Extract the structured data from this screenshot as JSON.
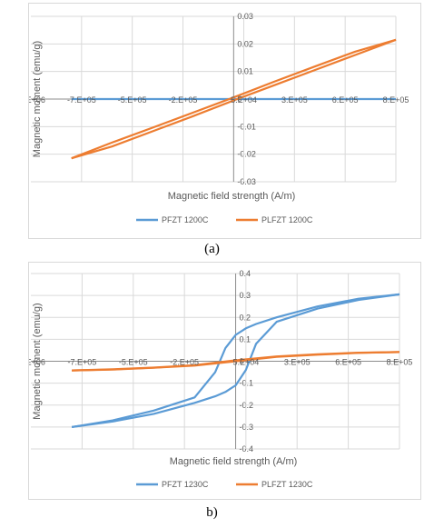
{
  "chart_data": [
    {
      "id": "a",
      "type": "line",
      "caption": "(a)",
      "xlabel": "Magnetic field strength (A/m)",
      "ylabel": "Magnetic moment (emu/g)",
      "xlim": [
        -1000000,
        800000
      ],
      "ylim": [
        -0.03,
        0.03
      ],
      "x_ticks": [
        -1000000,
        -750000,
        -500000,
        -250000,
        50000,
        300000,
        550000,
        800000
      ],
      "x_tick_labels": [
        "-1.E+06",
        "-7.E+05",
        "-5.E+05",
        "-2.E+05",
        "5.E+04",
        "3.E+05",
        "6.E+05",
        "8.E+05"
      ],
      "y_ticks": [
        -0.03,
        -0.02,
        -0.01,
        0,
        0.01,
        0.02,
        0.03
      ],
      "y_tick_labels": [
        "-0.03",
        "-0.02",
        "-0.01",
        "0",
        "0.01",
        "0.02",
        "0.03"
      ],
      "grid": true,
      "legend_position": "bottom",
      "series": [
        {
          "name": "PFZT 1200C",
          "color": "#5b9bd5",
          "x": [
            -800000,
            800000
          ],
          "y": [
            0,
            0
          ]
        },
        {
          "name": "PLFZT 1200C",
          "color": "#ed7d31",
          "x": [
            -800000,
            -600000,
            -400000,
            -200000,
            0,
            200000,
            400000,
            600000,
            800000
          ],
          "y": [
            -0.0215,
            -0.0172,
            -0.0117,
            -0.0062,
            -0.0005,
            0.005,
            0.0105,
            0.016,
            0.0215
          ]
        },
        {
          "name": "",
          "color": "#ed7d31",
          "x": [
            800000,
            600000,
            400000,
            200000,
            0,
            -200000,
            -400000,
            -600000,
            -800000
          ],
          "y": [
            0.0215,
            0.0172,
            0.0118,
            0.0063,
            0.0006,
            -0.0049,
            -0.0104,
            -0.0158,
            -0.0215
          ]
        }
      ]
    },
    {
      "id": "b",
      "type": "line",
      "caption": "b)",
      "xlabel": "Magnetic field strength (A/m)",
      "ylabel": "Magnetic moment (emu/g)",
      "xlim": [
        -1000000,
        800000
      ],
      "ylim": [
        -0.4,
        0.4
      ],
      "x_ticks": [
        -1000000,
        -750000,
        -500000,
        -250000,
        50000,
        300000,
        550000,
        800000
      ],
      "x_tick_labels": [
        "-1.E+06",
        "-7.E+05",
        "-5.E+05",
        "-2.E+05",
        "5.E+04",
        "3.E+05",
        "6.E+05",
        "8.E+05"
      ],
      "y_ticks": [
        -0.4,
        -0.3,
        -0.2,
        -0.1,
        0,
        0.1,
        0.2,
        0.3,
        0.4
      ],
      "y_tick_labels": [
        "-0.4",
        "-0.3",
        "-0.2",
        "-0.1",
        "0",
        "0.1",
        "0.2",
        "0.3",
        "0.4"
      ],
      "grid": true,
      "legend_position": "bottom",
      "series": [
        {
          "name": "PFZT 1230C",
          "color": "#5b9bd5",
          "x": [
            -800000,
            -600000,
            -400000,
            -200000,
            -100000,
            -50000,
            0,
            50000,
            100000,
            200000,
            400000,
            600000,
            800000
          ],
          "y": [
            -0.3,
            -0.27,
            -0.225,
            -0.165,
            -0.05,
            0.06,
            0.12,
            0.15,
            0.17,
            0.2,
            0.25,
            0.285,
            0.305
          ]
        },
        {
          "name": "",
          "color": "#5b9bd5",
          "x": [
            800000,
            600000,
            400000,
            200000,
            100000,
            50000,
            0,
            -50000,
            -100000,
            -200000,
            -400000,
            -600000,
            -800000
          ],
          "y": [
            0.305,
            0.28,
            0.24,
            0.18,
            0.08,
            -0.04,
            -0.11,
            -0.14,
            -0.16,
            -0.19,
            -0.24,
            -0.275,
            -0.3
          ]
        },
        {
          "name": "PLFZT 1230C",
          "color": "#ed7d31",
          "x": [
            -800000,
            -600000,
            -400000,
            -200000,
            0,
            200000,
            400000,
            600000,
            800000
          ],
          "y": [
            -0.042,
            -0.038,
            -0.03,
            -0.02,
            0.0,
            0.02,
            0.03,
            0.038,
            0.042
          ]
        },
        {
          "name": "",
          "color": "#ed7d31",
          "x": [
            800000,
            600000,
            400000,
            200000,
            0,
            -200000,
            -400000,
            -600000,
            -800000
          ],
          "y": [
            0.042,
            0.039,
            0.032,
            0.022,
            0.004,
            -0.018,
            -0.029,
            -0.037,
            -0.042
          ]
        }
      ]
    }
  ]
}
